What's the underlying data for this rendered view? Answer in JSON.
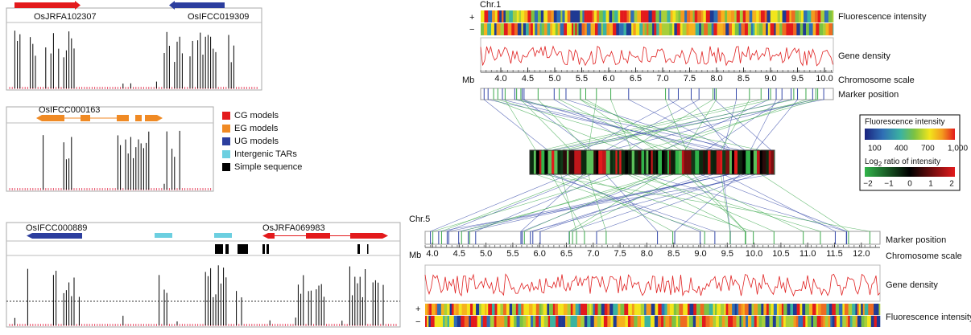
{
  "panel_a": {
    "genes": [
      "OsJRFA102307",
      "OsIFCC019309"
    ]
  },
  "panel_b": {
    "genes": [
      "OsIFCC000163"
    ]
  },
  "legend": [
    "CG models",
    "EG models",
    "UG models",
    "Intergenic TARs",
    "Simple sequence"
  ],
  "panel_c": {
    "genes": [
      "OsIFCC000889",
      "OsJRFA069983"
    ]
  },
  "chr1": {
    "label": "Chr.1",
    "strands": [
      "+",
      "−"
    ],
    "unit": "Mb",
    "scale": [
      "4.0",
      "4.5",
      "5.0",
      "5.5",
      "6.0",
      "6.5",
      "7.0",
      "7.5",
      "8.0",
      "8.5",
      "9.0",
      "9.5",
      "10.0"
    ],
    "tracks": [
      "Fluorescence intensity",
      "Gene density",
      "Chromosome scale",
      "Marker position"
    ]
  },
  "chr5": {
    "label": "Chr.5",
    "strands": [
      "+",
      "−"
    ],
    "unit": "Mb",
    "scale": [
      "4.0",
      "4.5",
      "5.0",
      "5.5",
      "6.0",
      "6.5",
      "7.0",
      "7.5",
      "8.0",
      "8.5",
      "9.0",
      "9.5",
      "10.0",
      "10.5",
      "11.0",
      "11.5",
      "12.0"
    ],
    "tracks": [
      "Marker position",
      "Chromosome scale",
      "Gene density",
      "Fluorescence intensity"
    ]
  },
  "color_key": {
    "intensity_title": "Fluorescence intensity",
    "intensity_labels": [
      "100",
      "400",
      "700",
      "1,000"
    ],
    "ratio_title": {
      "main": "Log",
      "sub": "2",
      "rest": " ratio of intensity"
    },
    "ratio_labels": [
      "−2",
      "−1",
      "0",
      "1",
      "2"
    ]
  }
}
